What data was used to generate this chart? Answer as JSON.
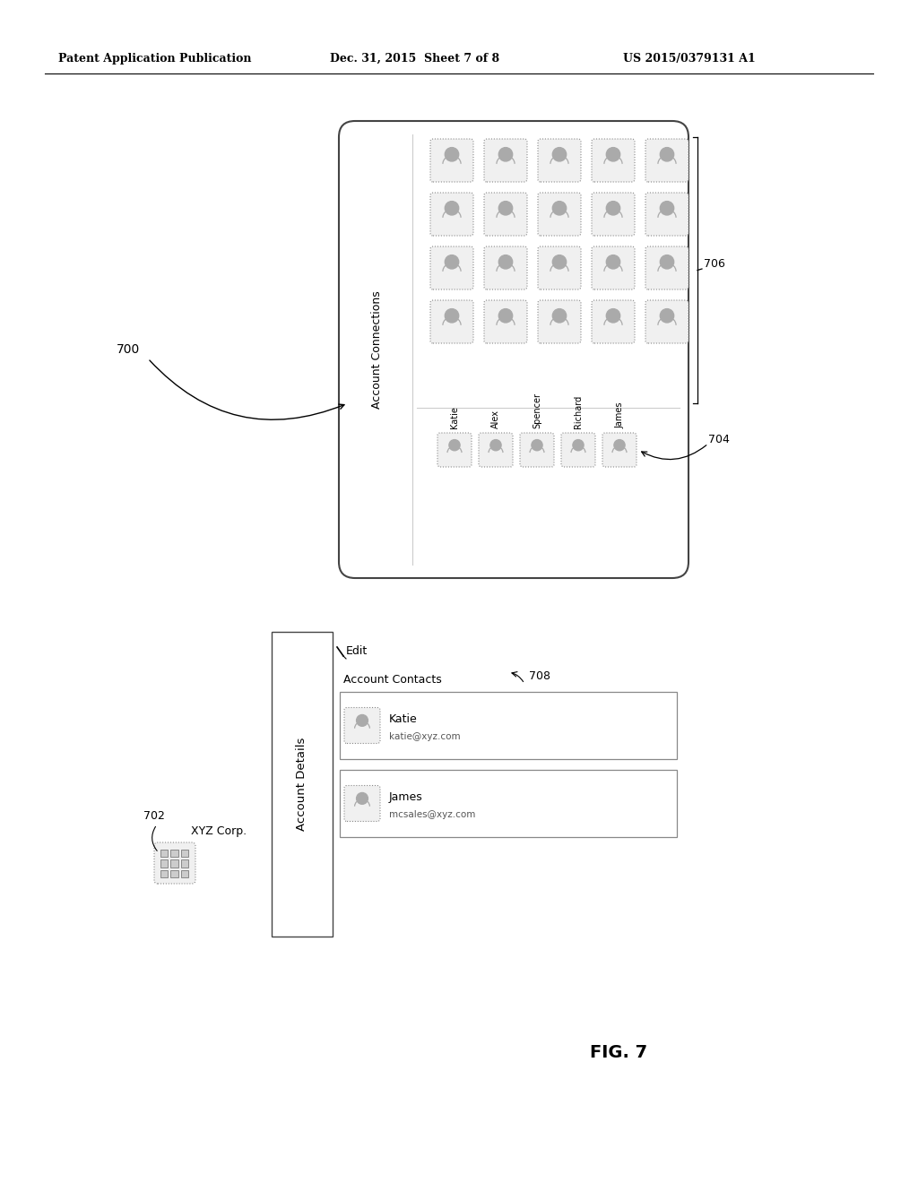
{
  "bg_color": "#ffffff",
  "header_left": "Patent Application Publication",
  "header_mid": "Dec. 31, 2015  Sheet 7 of 8",
  "header_right": "US 2015/0379131 A1",
  "fig_label": "FIG. 7",
  "label_700": "700",
  "label_702": "702",
  "label_704": "704",
  "label_706": "706",
  "label_708": "708",
  "xyz_corp_text": "XYZ Corp.",
  "edit_text": "Edit",
  "account_details_text": "Account Details",
  "account_contacts_text": "Account Contacts",
  "account_connections_text": "Account Connections",
  "contact1_name": "Katie",
  "contact1_email": "katie@xyz.com",
  "contact2_name": "James",
  "contact2_email": "mcsales@xyz.com",
  "connection_names": [
    "Katie",
    "Alex",
    "Spencer",
    "Richard",
    "James"
  ],
  "icon_grid_rows": 4,
  "icon_grid_cols": 5
}
